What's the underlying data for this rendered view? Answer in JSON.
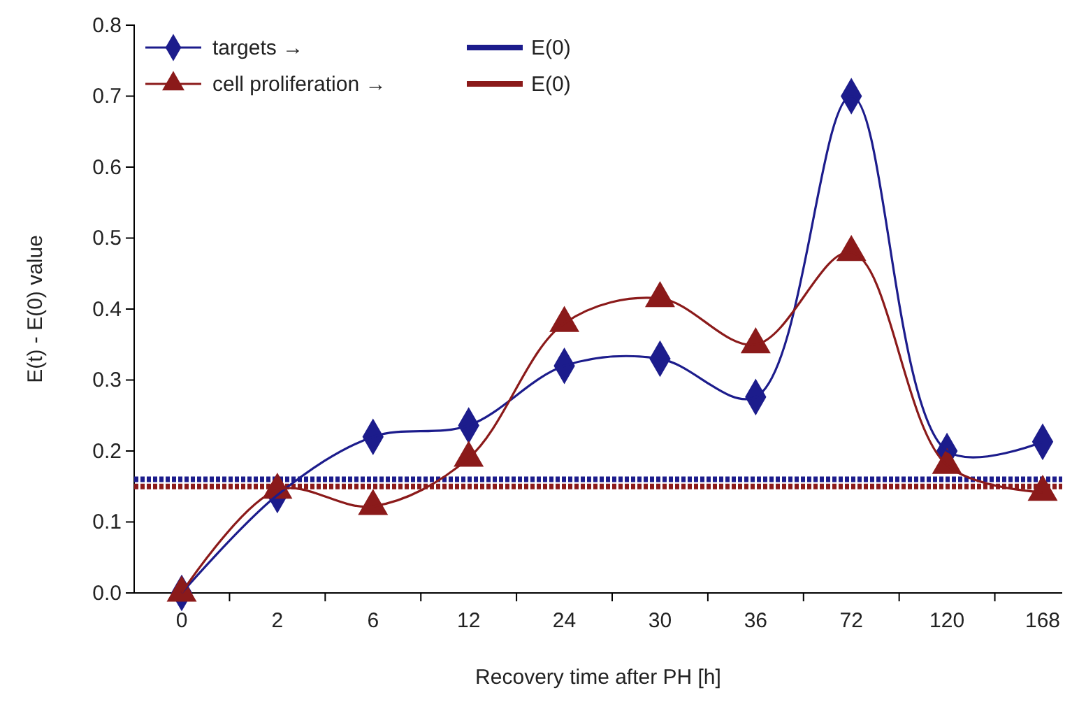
{
  "chart_data": {
    "type": "line",
    "xlabel": "Recovery time after PH [h]",
    "ylabel": "E(t) - E(0) value",
    "categories": [
      "0",
      "2",
      "6",
      "12",
      "24",
      "30",
      "36",
      "72",
      "120",
      "168"
    ],
    "series": [
      {
        "name": "targets →",
        "color": "#1c1c8c",
        "marker": "diamond",
        "values": [
          0,
          0.138,
          0.22,
          0.236,
          0.32,
          0.33,
          0.276,
          0.7,
          0.2,
          0.213
        ]
      },
      {
        "name": "cell proliferation →",
        "color": "#8b1a1a",
        "marker": "triangle",
        "values": [
          0,
          0.145,
          0.122,
          0.19,
          0.38,
          0.415,
          0.35,
          0.48,
          0.18,
          0.142
        ]
      }
    ],
    "ref_lines": [
      {
        "axis": "y",
        "value": 0.16,
        "label": "E(0)",
        "color": "#1c1c8c",
        "line_style": "dashed"
      },
      {
        "axis": "y",
        "value": 0.15,
        "label": "E(0)",
        "color": "#8b1a1a",
        "line_style": "dashed"
      }
    ],
    "ylim": [
      0,
      0.8
    ],
    "yticks": [
      {
        "value": 0,
        "label": "0.0"
      },
      {
        "value": 0.1,
        "label": "0.1"
      },
      {
        "value": 0.2,
        "label": "0.2"
      },
      {
        "value": 0.3,
        "label": "0.3"
      },
      {
        "value": 0.4,
        "label": "0.4"
      },
      {
        "value": 0.5,
        "label": "0.5"
      },
      {
        "value": 0.6,
        "label": "0.6"
      },
      {
        "value": 0.7,
        "label": "0.7"
      },
      {
        "value": 0.8,
        "label": "0.8"
      }
    ],
    "grid": false,
    "legend": "top left"
  }
}
